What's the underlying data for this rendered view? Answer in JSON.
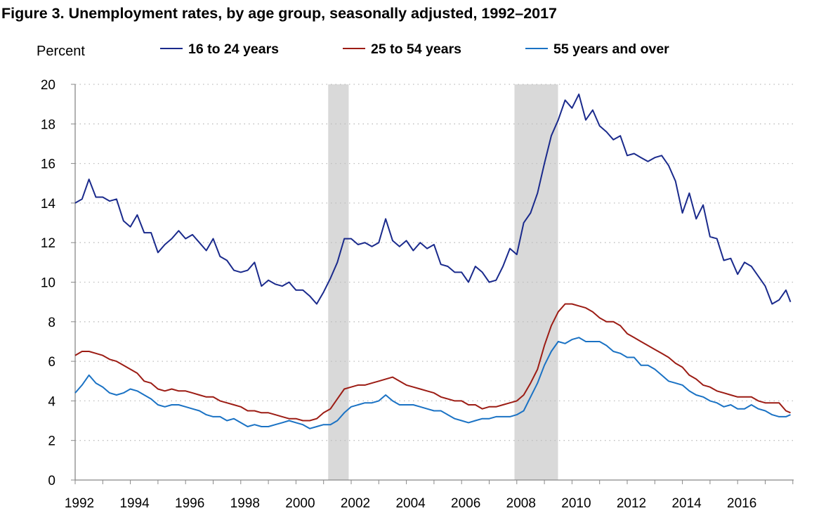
{
  "chart_data": {
    "type": "line",
    "title": "Figure 3. Unemployment rates, by age group, seasonally adjusted, 1992–2017",
    "ylabel": "Percent",
    "xlabel": "",
    "ylim": [
      0,
      20
    ],
    "yticks": [
      "0",
      "2",
      "4",
      "6",
      "8",
      "10",
      "12",
      "14",
      "16",
      "18",
      "20"
    ],
    "xticks": [
      "1992",
      "1994",
      "1996",
      "1998",
      "2000",
      "2002",
      "2004",
      "2006",
      "2008",
      "2010",
      "2012",
      "2014",
      "2016"
    ],
    "xlim": [
      "1992-01",
      "2017-12"
    ],
    "grid": "horizontal dotted",
    "legend": "top",
    "recessions": [
      {
        "start": "2001-03",
        "end": "2001-11"
      },
      {
        "start": "2007-12",
        "end": "2009-06"
      }
    ],
    "recession_color": "#d9d9d9",
    "x": [
      "1992-01",
      "1992-04",
      "1992-07",
      "1992-10",
      "1993-01",
      "1993-04",
      "1993-07",
      "1993-10",
      "1994-01",
      "1994-04",
      "1994-07",
      "1994-10",
      "1995-01",
      "1995-04",
      "1995-07",
      "1995-10",
      "1996-01",
      "1996-04",
      "1996-07",
      "1996-10",
      "1997-01",
      "1997-04",
      "1997-07",
      "1997-10",
      "1998-01",
      "1998-04",
      "1998-07",
      "1998-10",
      "1999-01",
      "1999-04",
      "1999-07",
      "1999-10",
      "2000-01",
      "2000-04",
      "2000-07",
      "2000-10",
      "2001-01",
      "2001-04",
      "2001-07",
      "2001-10",
      "2002-01",
      "2002-04",
      "2002-07",
      "2002-10",
      "2003-01",
      "2003-04",
      "2003-07",
      "2003-10",
      "2004-01",
      "2004-04",
      "2004-07",
      "2004-10",
      "2005-01",
      "2005-04",
      "2005-07",
      "2005-10",
      "2006-01",
      "2006-04",
      "2006-07",
      "2006-10",
      "2007-01",
      "2007-04",
      "2007-07",
      "2007-10",
      "2008-01",
      "2008-04",
      "2008-07",
      "2008-10",
      "2009-01",
      "2009-04",
      "2009-07",
      "2009-10",
      "2010-01",
      "2010-04",
      "2010-07",
      "2010-10",
      "2011-01",
      "2011-04",
      "2011-07",
      "2011-10",
      "2012-01",
      "2012-04",
      "2012-07",
      "2012-10",
      "2013-01",
      "2013-04",
      "2013-07",
      "2013-10",
      "2014-01",
      "2014-04",
      "2014-07",
      "2014-10",
      "2015-01",
      "2015-04",
      "2015-07",
      "2015-10",
      "2016-01",
      "2016-04",
      "2016-07",
      "2016-10",
      "2017-01",
      "2017-04",
      "2017-07",
      "2017-10",
      "2017-12"
    ],
    "series": [
      {
        "name": "16 to 24 years",
        "color": "#1a2a8c",
        "values": [
          14.0,
          14.2,
          15.2,
          14.3,
          14.3,
          14.1,
          14.2,
          13.1,
          12.8,
          13.4,
          12.5,
          12.5,
          11.5,
          11.9,
          12.2,
          12.6,
          12.2,
          12.4,
          12.0,
          11.6,
          12.2,
          11.3,
          11.1,
          10.6,
          10.5,
          10.6,
          11.0,
          9.8,
          10.1,
          9.9,
          9.8,
          10.0,
          9.6,
          9.6,
          9.3,
          8.9,
          9.5,
          10.2,
          11.0,
          12.2,
          12.2,
          11.9,
          12.0,
          11.8,
          12.0,
          13.2,
          12.1,
          11.8,
          12.1,
          11.6,
          12.0,
          11.7,
          11.9,
          10.9,
          10.8,
          10.5,
          10.5,
          10.0,
          10.8,
          10.5,
          10.0,
          10.1,
          10.8,
          11.7,
          11.4,
          13.0,
          13.5,
          14.5,
          16.0,
          17.4,
          18.2,
          19.2,
          18.8,
          19.5,
          18.2,
          18.7,
          17.9,
          17.6,
          17.2,
          17.4,
          16.4,
          16.5,
          16.3,
          16.1,
          16.3,
          16.4,
          15.9,
          15.1,
          13.5,
          14.5,
          13.2,
          13.9,
          12.3,
          12.2,
          11.1,
          11.2,
          10.4,
          11.0,
          10.8,
          10.3,
          9.8,
          8.9,
          9.1,
          9.6,
          9.0
        ]
      },
      {
        "name": "25 to 54 years",
        "color": "#9c1c14",
        "values": [
          6.3,
          6.5,
          6.5,
          6.4,
          6.3,
          6.1,
          6.0,
          5.8,
          5.6,
          5.4,
          5.0,
          4.9,
          4.6,
          4.5,
          4.6,
          4.5,
          4.5,
          4.4,
          4.3,
          4.2,
          4.2,
          4.0,
          3.9,
          3.8,
          3.7,
          3.5,
          3.5,
          3.4,
          3.4,
          3.3,
          3.2,
          3.1,
          3.1,
          3.0,
          3.0,
          3.1,
          3.4,
          3.6,
          4.1,
          4.6,
          4.7,
          4.8,
          4.8,
          4.9,
          5.0,
          5.1,
          5.2,
          5.0,
          4.8,
          4.7,
          4.6,
          4.5,
          4.4,
          4.2,
          4.1,
          4.0,
          4.0,
          3.8,
          3.8,
          3.6,
          3.7,
          3.7,
          3.8,
          3.9,
          4.0,
          4.3,
          4.9,
          5.6,
          6.8,
          7.8,
          8.5,
          8.9,
          8.9,
          8.8,
          8.7,
          8.5,
          8.2,
          8.0,
          8.0,
          7.8,
          7.4,
          7.2,
          7.0,
          6.8,
          6.6,
          6.4,
          6.2,
          5.9,
          5.7,
          5.3,
          5.1,
          4.8,
          4.7,
          4.5,
          4.4,
          4.3,
          4.2,
          4.2,
          4.2,
          4.0,
          3.9,
          3.9,
          3.9,
          3.5,
          3.4
        ]
      },
      {
        "name": "55 years and over",
        "color": "#1a72c4",
        "values": [
          4.4,
          4.8,
          5.3,
          4.9,
          4.7,
          4.4,
          4.3,
          4.4,
          4.6,
          4.5,
          4.3,
          4.1,
          3.8,
          3.7,
          3.8,
          3.8,
          3.7,
          3.6,
          3.5,
          3.3,
          3.2,
          3.2,
          3.0,
          3.1,
          2.9,
          2.7,
          2.8,
          2.7,
          2.7,
          2.8,
          2.9,
          3.0,
          2.9,
          2.8,
          2.6,
          2.7,
          2.8,
          2.8,
          3.0,
          3.4,
          3.7,
          3.8,
          3.9,
          3.9,
          4.0,
          4.3,
          4.0,
          3.8,
          3.8,
          3.8,
          3.7,
          3.6,
          3.5,
          3.5,
          3.3,
          3.1,
          3.0,
          2.9,
          3.0,
          3.1,
          3.1,
          3.2,
          3.2,
          3.2,
          3.3,
          3.5,
          4.2,
          4.9,
          5.8,
          6.5,
          7.0,
          6.9,
          7.1,
          7.2,
          7.0,
          7.0,
          7.0,
          6.8,
          6.5,
          6.4,
          6.2,
          6.2,
          5.8,
          5.8,
          5.6,
          5.3,
          5.0,
          4.9,
          4.8,
          4.5,
          4.3,
          4.2,
          4.0,
          3.9,
          3.7,
          3.8,
          3.6,
          3.6,
          3.8,
          3.6,
          3.5,
          3.3,
          3.2,
          3.2,
          3.3
        ]
      }
    ]
  }
}
